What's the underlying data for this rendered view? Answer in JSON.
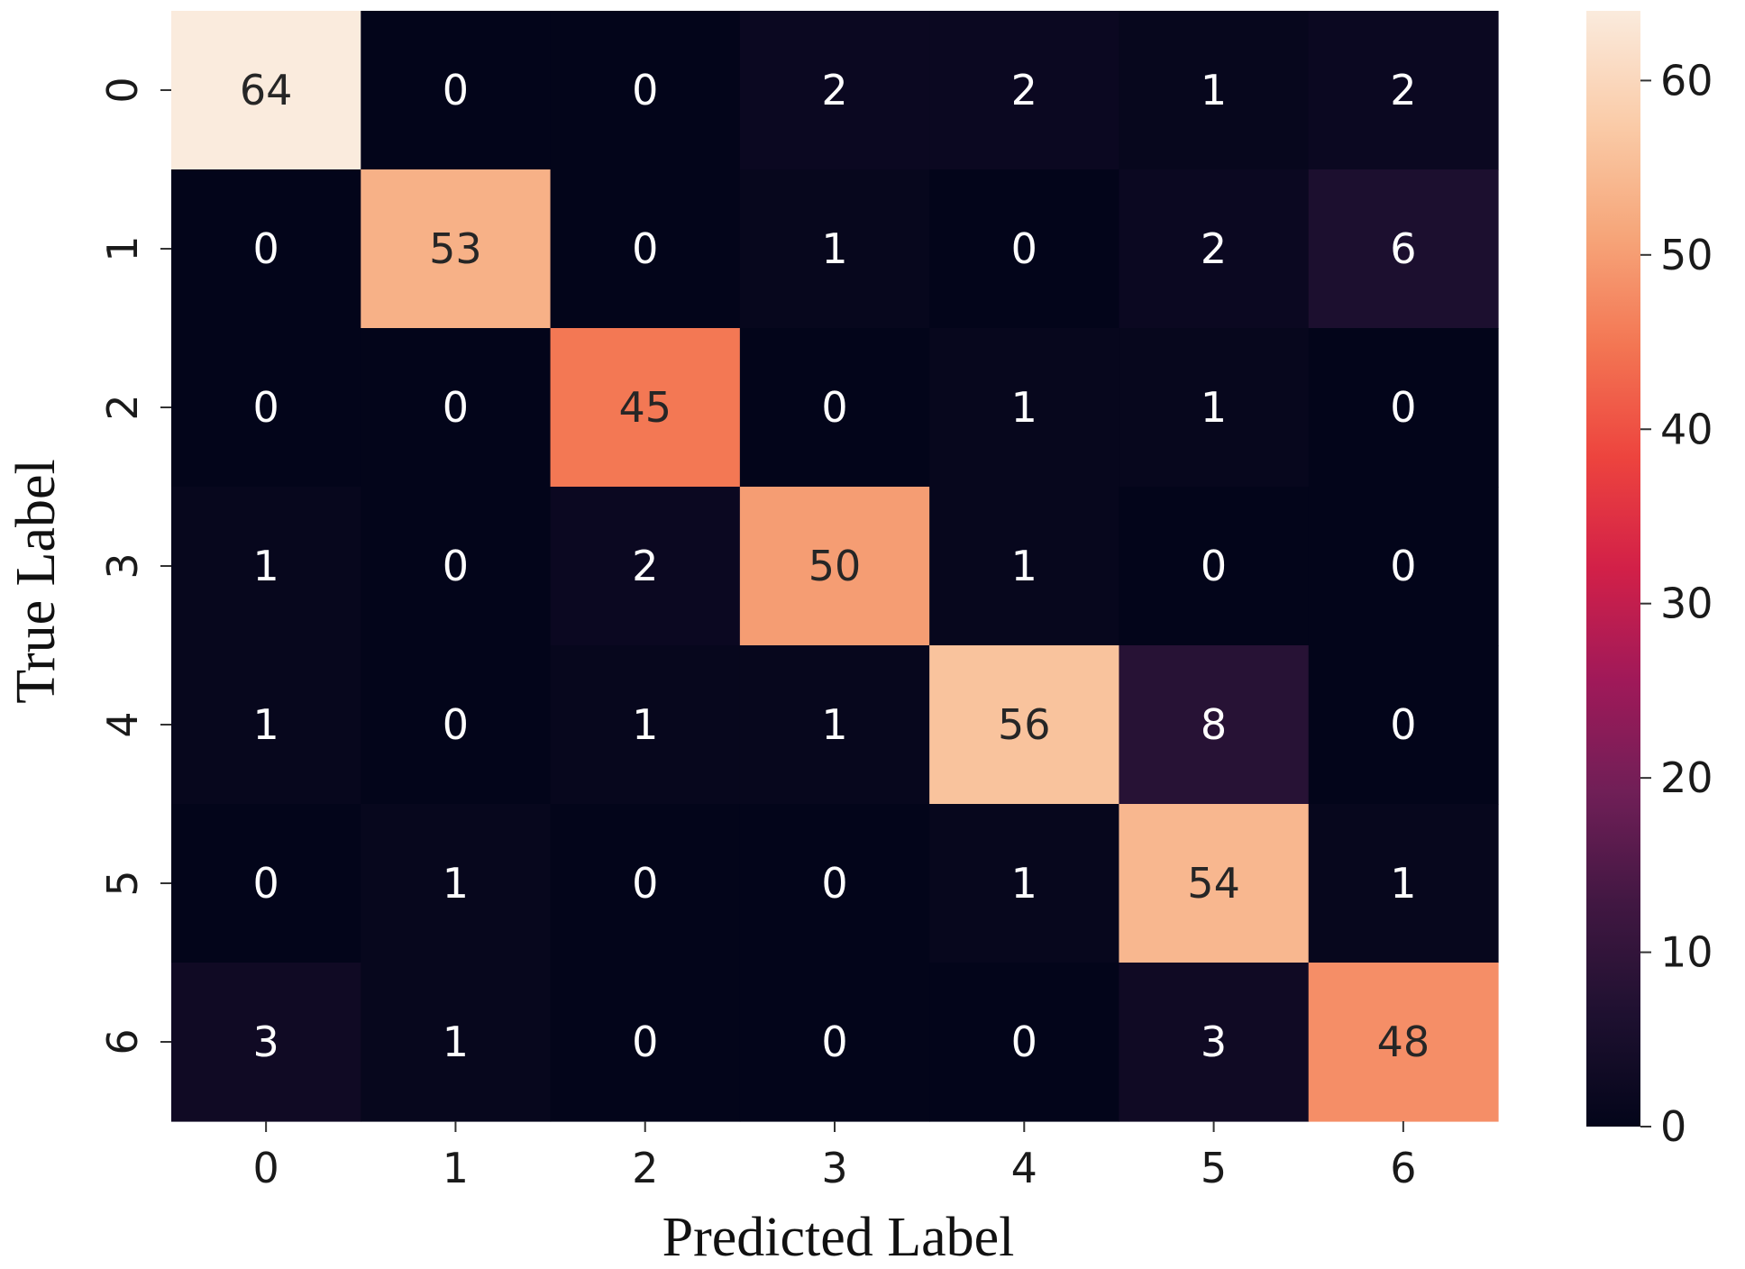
{
  "chart_data": {
    "type": "heatmap",
    "xlabel": "Predicted Label",
    "ylabel": "True Label",
    "x_categories": [
      "0",
      "1",
      "2",
      "3",
      "4",
      "5",
      "6"
    ],
    "y_categories": [
      "0",
      "1",
      "2",
      "3",
      "4",
      "5",
      "6"
    ],
    "values": [
      [
        64,
        0,
        0,
        2,
        2,
        1,
        2
      ],
      [
        0,
        53,
        0,
        1,
        0,
        2,
        6
      ],
      [
        0,
        0,
        45,
        0,
        1,
        1,
        0
      ],
      [
        1,
        0,
        2,
        50,
        1,
        0,
        0
      ],
      [
        1,
        0,
        1,
        1,
        56,
        8,
        0
      ],
      [
        0,
        1,
        0,
        0,
        1,
        54,
        1
      ],
      [
        3,
        1,
        0,
        0,
        0,
        3,
        48
      ]
    ],
    "colorbar": {
      "range": [
        0,
        64
      ],
      "ticks": [
        0,
        10,
        20,
        30,
        40,
        50,
        60
      ]
    },
    "colormap": "rocket",
    "grid": false
  }
}
